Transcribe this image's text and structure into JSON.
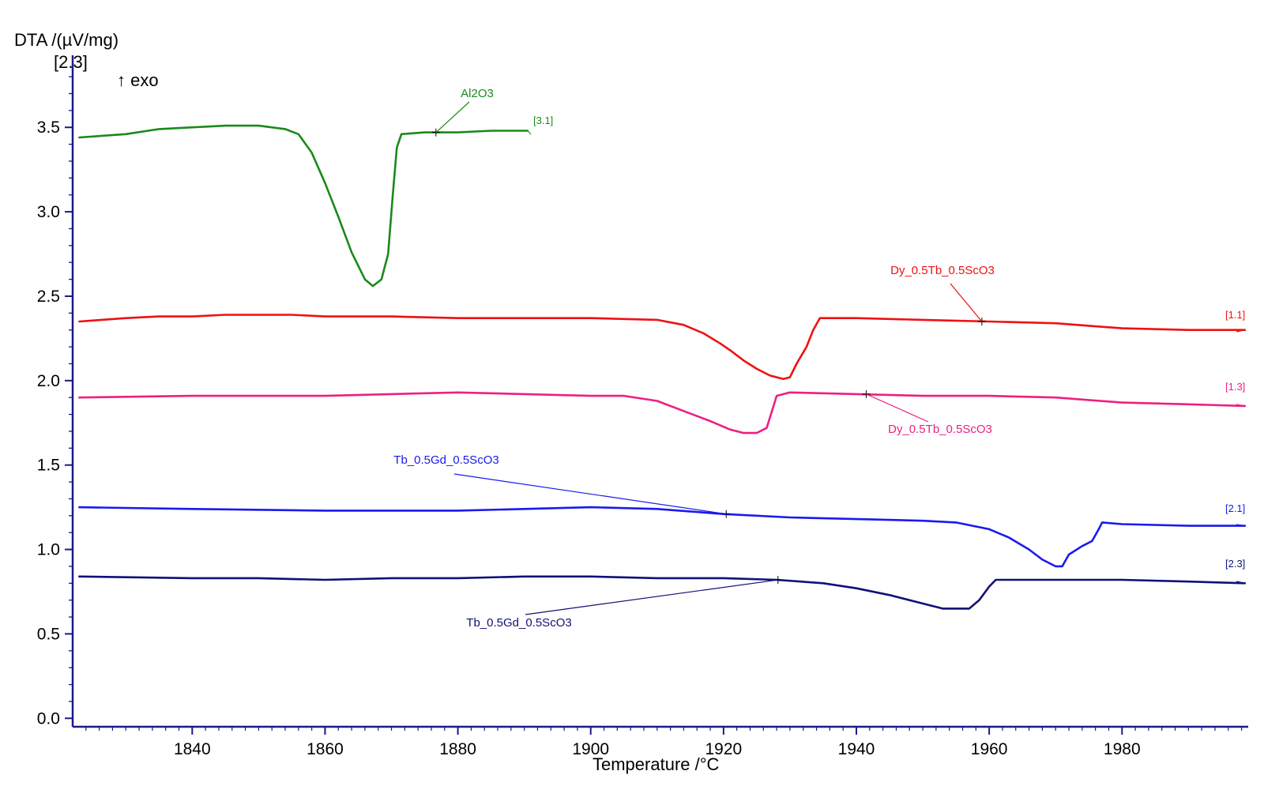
{
  "chart_data": {
    "type": "line",
    "title": "",
    "xlabel": "Temperature /°C",
    "ylabel": "DTA /(µV/mg)",
    "ylabel_scale": "[2.3]",
    "exo_marker": "↑ exo",
    "xlim": [
      1822,
      1999
    ],
    "ylim": [
      -0.05,
      3.88
    ],
    "x_ticks": [
      1840,
      1860,
      1880,
      1900,
      1920,
      1940,
      1960,
      1980
    ],
    "y_ticks": [
      0.0,
      0.5,
      1.0,
      1.5,
      2.0,
      2.5,
      3.0,
      3.5
    ],
    "x_tick_labels": [
      "1840",
      "1860",
      "1880",
      "1900",
      "1920",
      "1940",
      "1960",
      "1980"
    ],
    "y_tick_labels": [
      "0.0",
      "0.5",
      "1.0",
      "1.5",
      "2.0",
      "2.5",
      "3.0",
      "3.5"
    ],
    "series": [
      {
        "name": "Al2O3",
        "id": "[3.1]",
        "color": "#1a8a1a",
        "marker": [
          1876.7,
          3.47
        ],
        "points": [
          [
            1823,
            3.44
          ],
          [
            1830,
            3.46
          ],
          [
            1835,
            3.49
          ],
          [
            1840,
            3.5
          ],
          [
            1845,
            3.51
          ],
          [
            1850,
            3.51
          ],
          [
            1854,
            3.49
          ],
          [
            1856,
            3.46
          ],
          [
            1858,
            3.35
          ],
          [
            1860,
            3.17
          ],
          [
            1862,
            2.97
          ],
          [
            1864,
            2.76
          ],
          [
            1866,
            2.6
          ],
          [
            1867.2,
            2.56
          ],
          [
            1868.5,
            2.6
          ],
          [
            1869.5,
            2.75
          ],
          [
            1870.2,
            3.1
          ],
          [
            1870.8,
            3.38
          ],
          [
            1871.5,
            3.46
          ],
          [
            1875,
            3.47
          ],
          [
            1880,
            3.47
          ],
          [
            1885,
            3.48
          ],
          [
            1890.5,
            3.48
          ]
        ]
      },
      {
        "name": "Dy_0.5Tb_0.5ScO3",
        "id": "[1.1]",
        "color": "#ee1111",
        "marker": [
          1958.9,
          2.35
        ],
        "points": [
          [
            1823,
            2.35
          ],
          [
            1830,
            2.37
          ],
          [
            1835,
            2.38
          ],
          [
            1840,
            2.38
          ],
          [
            1845,
            2.39
          ],
          [
            1850,
            2.39
          ],
          [
            1855,
            2.39
          ],
          [
            1860,
            2.38
          ],
          [
            1870,
            2.38
          ],
          [
            1880,
            2.37
          ],
          [
            1890,
            2.37
          ],
          [
            1900,
            2.37
          ],
          [
            1910,
            2.36
          ],
          [
            1914,
            2.33
          ],
          [
            1917,
            2.28
          ],
          [
            1919.5,
            2.22
          ],
          [
            1921,
            2.18
          ],
          [
            1923,
            2.12
          ],
          [
            1925,
            2.07
          ],
          [
            1927,
            2.03
          ],
          [
            1929,
            2.01
          ],
          [
            1930,
            2.02
          ],
          [
            1931,
            2.1
          ],
          [
            1932.5,
            2.2
          ],
          [
            1933.5,
            2.3
          ],
          [
            1934.5,
            2.37
          ],
          [
            1940,
            2.37
          ],
          [
            1950,
            2.36
          ],
          [
            1960,
            2.35
          ],
          [
            1970,
            2.34
          ],
          [
            1980,
            2.31
          ],
          [
            1990,
            2.3
          ],
          [
            1998.5,
            2.3
          ]
        ]
      },
      {
        "name": "Dy_0.5Tb_0.5ScO3",
        "id": "[1.3]",
        "color": "#ee1f80",
        "marker": [
          1941.5,
          1.92
        ],
        "points": [
          [
            1823,
            1.9
          ],
          [
            1840,
            1.91
          ],
          [
            1860,
            1.91
          ],
          [
            1870,
            1.92
          ],
          [
            1880,
            1.93
          ],
          [
            1890,
            1.92
          ],
          [
            1900,
            1.91
          ],
          [
            1905,
            1.91
          ],
          [
            1910,
            1.88
          ],
          [
            1914,
            1.82
          ],
          [
            1918,
            1.76
          ],
          [
            1921,
            1.71
          ],
          [
            1923,
            1.69
          ],
          [
            1925,
            1.69
          ],
          [
            1926.5,
            1.72
          ],
          [
            1927.3,
            1.82
          ],
          [
            1928,
            1.91
          ],
          [
            1930,
            1.93
          ],
          [
            1940,
            1.92
          ],
          [
            1950,
            1.91
          ],
          [
            1960,
            1.91
          ],
          [
            1970,
            1.9
          ],
          [
            1980,
            1.87
          ],
          [
            1990,
            1.86
          ],
          [
            1998.5,
            1.85
          ]
        ]
      },
      {
        "name": "Tb_0.5Gd_0.5ScO3",
        "id": "[2.1]",
        "color": "#1a1aee",
        "marker": [
          1920.4,
          1.21
        ],
        "points": [
          [
            1823,
            1.25
          ],
          [
            1840,
            1.24
          ],
          [
            1860,
            1.23
          ],
          [
            1880,
            1.23
          ],
          [
            1890,
            1.24
          ],
          [
            1900,
            1.25
          ],
          [
            1910,
            1.24
          ],
          [
            1920,
            1.21
          ],
          [
            1930,
            1.19
          ],
          [
            1940,
            1.18
          ],
          [
            1950,
            1.17
          ],
          [
            1955,
            1.16
          ],
          [
            1960,
            1.12
          ],
          [
            1963,
            1.07
          ],
          [
            1966,
            1.0
          ],
          [
            1968,
            0.94
          ],
          [
            1970,
            0.9
          ],
          [
            1971,
            0.9
          ],
          [
            1972,
            0.97
          ],
          [
            1974,
            1.02
          ],
          [
            1975.5,
            1.05
          ],
          [
            1976.5,
            1.12
          ],
          [
            1977,
            1.16
          ],
          [
            1980,
            1.15
          ],
          [
            1990,
            1.14
          ],
          [
            1998.5,
            1.14
          ]
        ]
      },
      {
        "name": "Tb_0.5Gd_0.5ScO3",
        "id": "[2.3]",
        "color": "#101078",
        "marker": [
          1928.2,
          0.82
        ],
        "points": [
          [
            1823,
            0.84
          ],
          [
            1840,
            0.83
          ],
          [
            1850,
            0.83
          ],
          [
            1860,
            0.82
          ],
          [
            1870,
            0.83
          ],
          [
            1880,
            0.83
          ],
          [
            1890,
            0.84
          ],
          [
            1900,
            0.84
          ],
          [
            1910,
            0.83
          ],
          [
            1920,
            0.83
          ],
          [
            1928,
            0.82
          ],
          [
            1935,
            0.8
          ],
          [
            1940,
            0.77
          ],
          [
            1945,
            0.73
          ],
          [
            1950,
            0.68
          ],
          [
            1953,
            0.65
          ],
          [
            1957,
            0.65
          ],
          [
            1958.5,
            0.7
          ],
          [
            1960,
            0.78
          ],
          [
            1961,
            0.82
          ],
          [
            1970,
            0.82
          ],
          [
            1980,
            0.82
          ],
          [
            1990,
            0.81
          ],
          [
            1998.5,
            0.8
          ]
        ]
      }
    ]
  }
}
